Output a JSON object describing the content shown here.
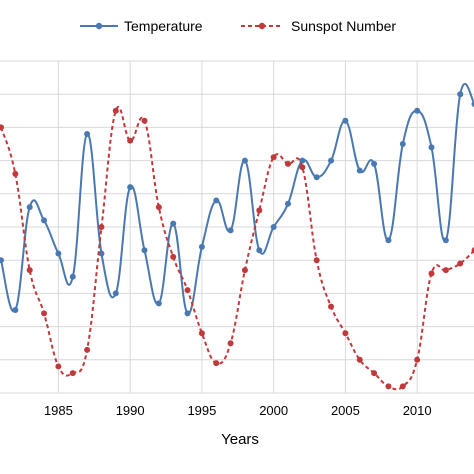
{
  "chart_data": {
    "type": "line",
    "xlabel": "Years",
    "legend_position": "top",
    "grid": true,
    "xlim": [
      1981,
      2014
    ],
    "ylim": [
      0,
      10
    ],
    "x_ticks": [
      1985,
      1990,
      1995,
      2000,
      2005,
      2010
    ],
    "y_grid_count": 10,
    "x_grid": [
      1980,
      1985,
      1990,
      1995,
      2000,
      2005,
      2010
    ],
    "series": [
      {
        "name": "Temperature",
        "color": "#4a78b0",
        "line_style": "solid",
        "x": [
          1981,
          1982,
          1983,
          1984,
          1985,
          1986,
          1987,
          1988,
          1989,
          1990,
          1991,
          1992,
          1993,
          1994,
          1995,
          1996,
          1997,
          1998,
          1999,
          2000,
          2001,
          2002,
          2003,
          2004,
          2005,
          2006,
          2007,
          2008,
          2009,
          2010,
          2011,
          2012,
          2013,
          2014
        ],
        "y": [
          4.0,
          2.5,
          5.6,
          5.2,
          4.2,
          3.5,
          7.8,
          4.2,
          3.0,
          6.2,
          4.3,
          2.7,
          5.1,
          2.4,
          4.4,
          5.8,
          4.9,
          7.0,
          4.3,
          5.0,
          5.7,
          7.0,
          6.5,
          7.0,
          8.2,
          6.7,
          6.9,
          4.6,
          7.5,
          8.5,
          7.4,
          4.6,
          9.0,
          8.7
        ]
      },
      {
        "name": "Sunspot Number",
        "color": "#c0393b",
        "line_style": "dashed",
        "x": [
          1981,
          1982,
          1983,
          1984,
          1985,
          1986,
          1987,
          1988,
          1989,
          1990,
          1991,
          1992,
          1993,
          1994,
          1995,
          1996,
          1997,
          1998,
          1999,
          2000,
          2001,
          2002,
          2003,
          2004,
          2005,
          2006,
          2007,
          2008,
          2009,
          2010,
          2011,
          2012,
          2013,
          2014
        ],
        "y": [
          8.0,
          6.6,
          3.7,
          2.4,
          0.8,
          0.6,
          1.3,
          5.0,
          8.5,
          7.6,
          8.2,
          5.6,
          4.1,
          3.1,
          1.8,
          0.9,
          1.5,
          3.7,
          5.5,
          7.1,
          6.9,
          6.8,
          4.0,
          2.6,
          1.8,
          1.0,
          0.6,
          0.2,
          0.2,
          1.0,
          3.6,
          3.7,
          3.9,
          4.3
        ]
      }
    ]
  }
}
